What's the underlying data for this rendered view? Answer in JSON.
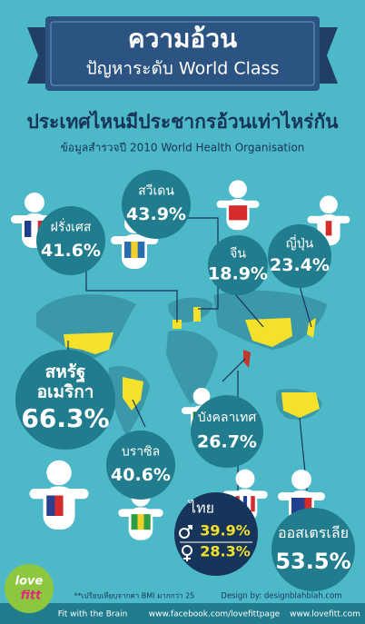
{
  "banner": {
    "line1": "ความอ้วน",
    "line2": "ปัญหาระดับ World Class"
  },
  "title": "ประเทศไหนมีประชากรอ้วนเท่าไหร่กัน",
  "subtitle": "ข้อมูลสำรวจปี 2010 World Health Organisation",
  "countries": [
    {
      "name": "ฝรั่งเศส",
      "value": "41.6%"
    },
    {
      "name": "สวีเดน",
      "value": "43.9%"
    },
    {
      "name": "จีน",
      "value": "18.9%"
    },
    {
      "name": "ญี่ปุ่น",
      "value": "23.4%"
    },
    {
      "name": [
        "สหรัฐ",
        "อเมริกา"
      ],
      "value": "66.3%"
    },
    {
      "name": "บราซิล",
      "value": "40.6%"
    },
    {
      "name": "บังคลาเทศ",
      "value": "26.7%"
    },
    {
      "name": "ออสเตรเลีย",
      "value": "53.5%"
    }
  ],
  "thailand": {
    "name": "ไทย",
    "male": "39.9%",
    "female": "28.3%"
  },
  "footnote": {
    "note": "**เปรียบเทียบจากค่า BMI มากกว่า 25",
    "credit": "Design by: designblahblah.com"
  },
  "footer": {
    "tagline": "Fit with the Brain",
    "facebook": "www.facebook.com/lovefittpage",
    "website": "www.lovefitt.com"
  },
  "logo": [
    "love",
    "fitt"
  ]
}
